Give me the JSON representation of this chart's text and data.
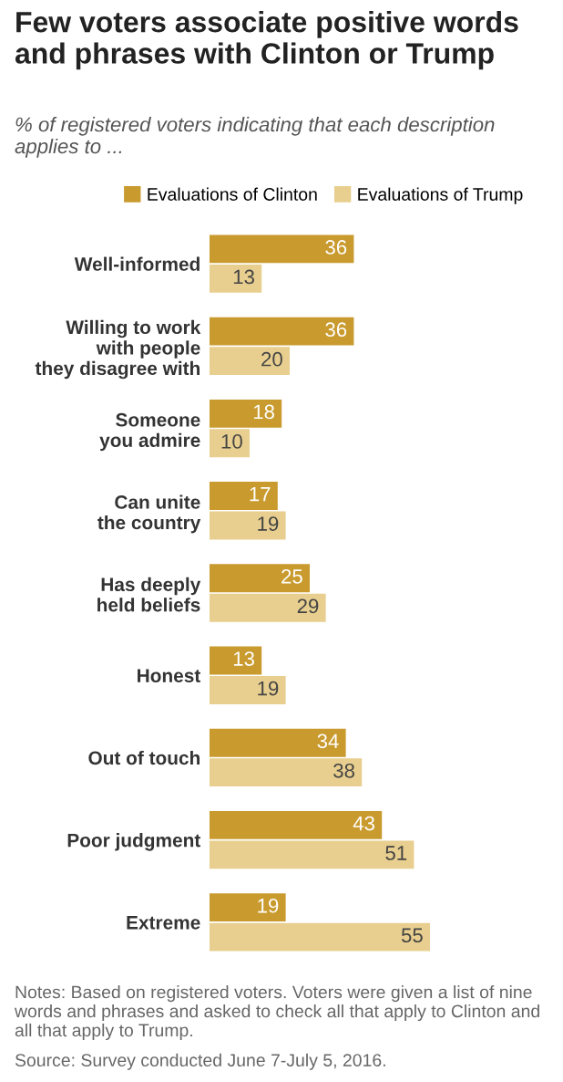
{
  "chart_data": {
    "type": "bar",
    "orientation": "horizontal",
    "title": "Few voters associate positive words and phrases with Clinton or Trump",
    "subtitle": "% of registered voters indicating that each description applies to ...",
    "categories": [
      "Well-informed",
      "Willing to work\nwith people\nthey disagree with",
      "Someone\nyou admire",
      "Can unite\nthe country",
      "Has deeply\nheld beliefs",
      "Honest",
      "Out of touch",
      "Poor judgment",
      "Extreme"
    ],
    "series": [
      {
        "name": "Evaluations of Clinton",
        "color": "#c99a2e",
        "values": [
          36,
          36,
          18,
          17,
          25,
          13,
          34,
          43,
          19
        ]
      },
      {
        "name": "Evaluations of Trump",
        "color": "#e8cf8f",
        "values": [
          13,
          20,
          10,
          19,
          29,
          19,
          38,
          51,
          55
        ]
      }
    ],
    "data_labels": true,
    "legend": "top",
    "grid": false,
    "tick_labels": "y",
    "annotations": [
      "Notes: Based on registered voters. Voters were given a list of nine words and phrases and asked to check all that apply to Clinton and all that apply to Trump.",
      "Source: Survey conducted June 7-July 5, 2016."
    ]
  }
}
